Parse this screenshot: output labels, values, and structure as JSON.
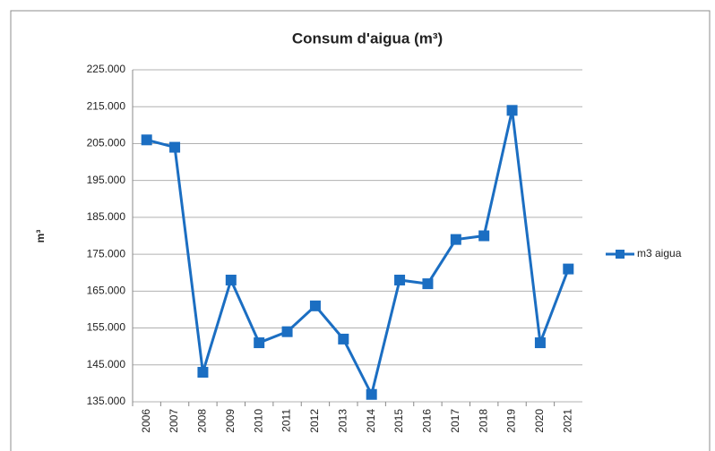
{
  "chart_data": {
    "type": "line",
    "title": "Consum d'aigua (m³)",
    "y_label": "m³",
    "categories": [
      "2006",
      "2007",
      "2008",
      "2009",
      "2010",
      "2011",
      "2012",
      "2013",
      "2014",
      "2015",
      "2016",
      "2017",
      "2018",
      "2019",
      "2020",
      "2021"
    ],
    "series": [
      {
        "name": "m3 aigua",
        "color": "#1b6ec2",
        "values": [
          206000,
          204000,
          143000,
          168000,
          151000,
          154000,
          161000,
          152000,
          137000,
          168000,
          167000,
          179000,
          180000,
          214000,
          151000,
          171000
        ]
      }
    ],
    "ylim": [
      135000,
      225000
    ],
    "yticks": [
      {
        "value": 135000,
        "label": "135.000"
      },
      {
        "value": 145000,
        "label": "145.000"
      },
      {
        "value": 155000,
        "label": "155.000"
      },
      {
        "value": 165000,
        "label": "165.000"
      },
      {
        "value": 175000,
        "label": "175.000"
      },
      {
        "value": 185000,
        "label": "185.000"
      },
      {
        "value": 195000,
        "label": "195.000"
      },
      {
        "value": 205000,
        "label": "205.000"
      },
      {
        "value": 215000,
        "label": "215.000"
      },
      {
        "value": 225000,
        "label": "225.000"
      }
    ],
    "grid": true,
    "legend": "right"
  }
}
